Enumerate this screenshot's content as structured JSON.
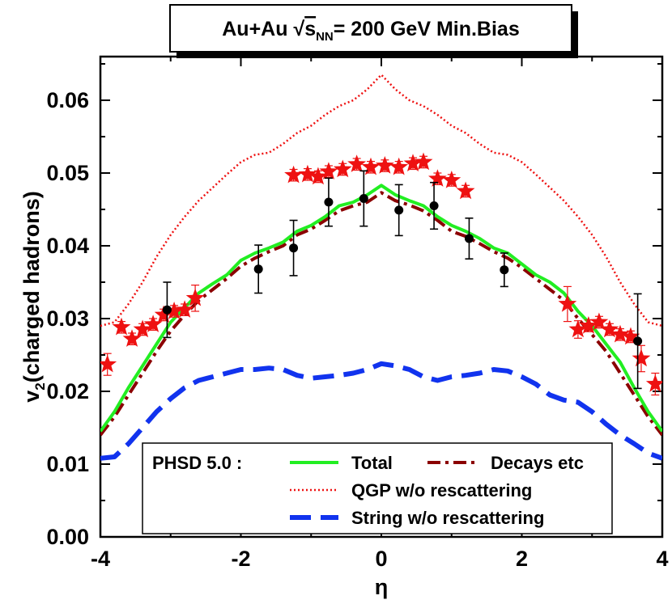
{
  "chart_data": {
    "type": "line",
    "title_parts": {
      "a": "Au+Au ",
      "sqrt": "√",
      "s": "s",
      "sub": "NN",
      "b": "= 200 GeV Min.Bias"
    },
    "xlabel": "η",
    "ylabel_parts": {
      "a": "v",
      "sub": "2",
      "b": "(charged hadrons)"
    },
    "xlim": [
      -4,
      4
    ],
    "ylim": [
      0.0,
      0.066
    ],
    "xticks": [
      -4,
      -2,
      0,
      2,
      4
    ],
    "xtick_labels": [
      "-4",
      "-2",
      "0",
      "2",
      "4"
    ],
    "yticks": [
      0.0,
      0.01,
      0.02,
      0.03,
      0.04,
      0.05,
      0.06
    ],
    "ytick_labels": [
      "0.00",
      "0.01",
      "0.02",
      "0.03",
      "0.04",
      "0.05",
      "0.06"
    ],
    "legend": {
      "header": "PHSD 5.0 :",
      "entries": [
        "Total",
        "Decays etc",
        "QGP w/o rescattering",
        "String w/o rescattering"
      ],
      "placement": "bottom-center"
    },
    "series": [
      {
        "name": "Total",
        "color": "#22ee22",
        "style": "solid",
        "x": [
          -4.0,
          -3.8,
          -3.6,
          -3.4,
          -3.2,
          -3.0,
          -2.8,
          -2.6,
          -2.4,
          -2.2,
          -2.0,
          -1.8,
          -1.6,
          -1.4,
          -1.2,
          -1.0,
          -0.8,
          -0.6,
          -0.4,
          -0.2,
          0.0,
          0.2,
          0.4,
          0.6,
          0.8,
          1.0,
          1.2,
          1.4,
          1.6,
          1.8,
          2.0,
          2.2,
          2.4,
          2.6,
          2.8,
          3.0,
          3.2,
          3.4,
          3.6,
          3.8,
          4.0
        ],
        "y": [
          0.0145,
          0.0172,
          0.0205,
          0.0235,
          0.0265,
          0.0295,
          0.0315,
          0.0335,
          0.0348,
          0.036,
          0.038,
          0.039,
          0.0397,
          0.0405,
          0.042,
          0.0428,
          0.044,
          0.0455,
          0.046,
          0.047,
          0.0483,
          0.047,
          0.0462,
          0.0455,
          0.044,
          0.0428,
          0.042,
          0.041,
          0.0397,
          0.039,
          0.0375,
          0.036,
          0.035,
          0.0335,
          0.031,
          0.029,
          0.0265,
          0.024,
          0.0205,
          0.0172,
          0.0145
        ]
      },
      {
        "name": "Decays etc",
        "color": "#8b0000",
        "style": "dashdot",
        "x": [
          -4.0,
          -3.8,
          -3.6,
          -3.4,
          -3.2,
          -3.0,
          -2.8,
          -2.6,
          -2.4,
          -2.2,
          -2.0,
          -1.8,
          -1.6,
          -1.4,
          -1.2,
          -1.0,
          -0.8,
          -0.6,
          -0.4,
          -0.2,
          0.0,
          0.2,
          0.4,
          0.6,
          0.8,
          1.0,
          1.2,
          1.4,
          1.6,
          1.8,
          2.0,
          2.2,
          2.4,
          2.6,
          2.8,
          3.0,
          3.2,
          3.4,
          3.6,
          3.8,
          4.0
        ],
        "y": [
          0.014,
          0.0165,
          0.0195,
          0.0225,
          0.0255,
          0.0283,
          0.0305,
          0.0325,
          0.034,
          0.0355,
          0.0372,
          0.0383,
          0.0392,
          0.04,
          0.0415,
          0.0423,
          0.0435,
          0.0448,
          0.0455,
          0.046,
          0.0473,
          0.0462,
          0.0456,
          0.0448,
          0.0435,
          0.042,
          0.0413,
          0.0403,
          0.0392,
          0.0383,
          0.037,
          0.0355,
          0.034,
          0.0325,
          0.03,
          0.0278,
          0.0255,
          0.0225,
          0.0195,
          0.0165,
          0.014
        ]
      },
      {
        "name": "QGP w/o rescattering",
        "color": "#ee1111",
        "style": "dotted",
        "x": [
          -4.0,
          -3.8,
          -3.6,
          -3.4,
          -3.2,
          -3.0,
          -2.8,
          -2.6,
          -2.4,
          -2.2,
          -2.0,
          -1.8,
          -1.6,
          -1.4,
          -1.2,
          -1.0,
          -0.8,
          -0.6,
          -0.4,
          -0.2,
          0.0,
          0.2,
          0.4,
          0.6,
          0.8,
          1.0,
          1.2,
          1.4,
          1.6,
          1.8,
          2.0,
          2.2,
          2.4,
          2.6,
          2.8,
          3.0,
          3.2,
          3.4,
          3.6,
          3.8,
          4.0
        ],
        "y": [
          0.029,
          0.0295,
          0.032,
          0.035,
          0.0385,
          0.0415,
          0.044,
          0.0462,
          0.048,
          0.0498,
          0.0515,
          0.0525,
          0.0528,
          0.054,
          0.0555,
          0.0565,
          0.058,
          0.0592,
          0.06,
          0.0615,
          0.0635,
          0.0615,
          0.06,
          0.0592,
          0.058,
          0.0565,
          0.0555,
          0.054,
          0.0528,
          0.0525,
          0.0515,
          0.0498,
          0.048,
          0.0462,
          0.044,
          0.0415,
          0.0385,
          0.035,
          0.032,
          0.0295,
          0.029
        ]
      },
      {
        "name": "String w/o rescattering",
        "color": "#1133ee",
        "style": "dashed",
        "x": [
          -4.0,
          -3.8,
          -3.6,
          -3.4,
          -3.2,
          -3.0,
          -2.8,
          -2.6,
          -2.4,
          -2.2,
          -2.0,
          -1.8,
          -1.6,
          -1.4,
          -1.2,
          -1.0,
          -0.8,
          -0.6,
          -0.4,
          -0.2,
          0.0,
          0.2,
          0.4,
          0.6,
          0.8,
          1.0,
          1.2,
          1.4,
          1.6,
          1.8,
          2.0,
          2.2,
          2.4,
          2.6,
          2.8,
          3.0,
          3.2,
          3.4,
          3.6,
          3.8,
          4.0
        ],
        "y": [
          0.0108,
          0.011,
          0.0128,
          0.015,
          0.0172,
          0.019,
          0.0205,
          0.0215,
          0.022,
          0.0225,
          0.023,
          0.023,
          0.0232,
          0.023,
          0.0222,
          0.0218,
          0.022,
          0.0222,
          0.0225,
          0.023,
          0.0238,
          0.0235,
          0.023,
          0.022,
          0.0215,
          0.022,
          0.0222,
          0.0225,
          0.023,
          0.0228,
          0.022,
          0.021,
          0.0195,
          0.0188,
          0.0185,
          0.0172,
          0.0155,
          0.014,
          0.0128,
          0.0115,
          0.0108
        ]
      }
    ],
    "data_points": [
      {
        "name": "stars",
        "color": "#ee1111",
        "marker": "star",
        "x": [
          -3.9,
          -3.7,
          -3.55,
          -3.4,
          -3.25,
          -3.1,
          -2.95,
          -2.8,
          -2.65,
          -1.25,
          -1.05,
          -0.9,
          -0.75,
          -0.55,
          -0.35,
          -0.15,
          0.05,
          0.25,
          0.45,
          0.6,
          0.8,
          1.0,
          1.2,
          2.65,
          2.8,
          2.95,
          3.1,
          3.25,
          3.4,
          3.55,
          3.7,
          3.9
        ],
        "y": [
          0.0237,
          0.0288,
          0.0272,
          0.0285,
          0.0292,
          0.0305,
          0.031,
          0.0312,
          0.0328,
          0.0497,
          0.0498,
          0.0495,
          0.0502,
          0.0505,
          0.0512,
          0.0508,
          0.051,
          0.0508,
          0.0513,
          0.0515,
          0.0492,
          0.049,
          0.0475,
          0.032,
          0.0285,
          0.029,
          0.0295,
          0.0285,
          0.0278,
          0.0275,
          0.0245,
          0.021
        ],
        "err": [
          0.0015,
          0.0008,
          0.0008,
          0.0008,
          0.0008,
          0.0008,
          0.0008,
          0.0008,
          0.0018,
          0.0008,
          0.0008,
          0.0008,
          0.0008,
          0.0008,
          0.0008,
          0.0008,
          0.0008,
          0.0008,
          0.0008,
          0.0008,
          0.0008,
          0.0008,
          0.0008,
          0.0024,
          0.0012,
          0.0008,
          0.0008,
          0.0008,
          0.0008,
          0.0008,
          0.0018,
          0.0015
        ]
      },
      {
        "name": "dots",
        "color": "#000000",
        "marker": "circle",
        "x": [
          -3.05,
          -1.75,
          -1.25,
          -0.75,
          -0.25,
          0.25,
          0.75,
          1.25,
          1.75,
          3.65
        ],
        "y": [
          0.0312,
          0.0368,
          0.0397,
          0.046,
          0.0465,
          0.0449,
          0.0455,
          0.041,
          0.0367,
          0.0269
        ],
        "err": [
          0.0038,
          0.0033,
          0.0038,
          0.0033,
          0.0038,
          0.0035,
          0.0032,
          0.0028,
          0.0023,
          0.0065
        ]
      }
    ]
  }
}
